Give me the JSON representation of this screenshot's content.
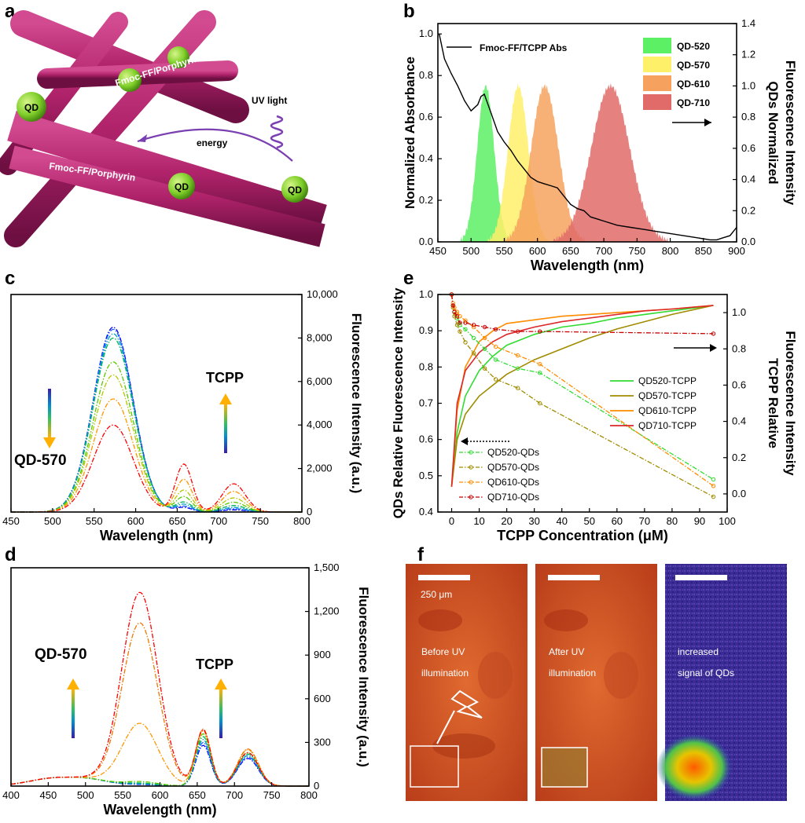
{
  "panels": {
    "a": {
      "label": "a",
      "fiber_labels": [
        "Fmoc-FF/Porphyrin",
        "Fmoc-FF/Porphyrin"
      ],
      "qd_labels": [
        "QD",
        "QD",
        "QD"
      ],
      "uv_label": "UV light",
      "energy_label": "energy",
      "colors": {
        "fiber": "#b0236b",
        "qd": "#7fcf2a",
        "uv": "#7a3fb0"
      }
    },
    "b": {
      "label": "b"
    },
    "c": {
      "label": "c",
      "qd_label": "QD-570",
      "tcpp_label": "TCPP"
    },
    "d": {
      "label": "d",
      "qd_label": "QD-570",
      "tcpp_label": "TCPP"
    },
    "e": {
      "label": "e"
    },
    "f": {
      "label": "f",
      "scale_label": "250 μm",
      "captions": [
        [
          "Before UV",
          "illumination"
        ],
        [
          "After UV",
          "illumination"
        ],
        [
          "increased",
          "signal of QDs"
        ]
      ]
    }
  },
  "chart_data": [
    {
      "id": "b",
      "type": "area",
      "xlabel": "Wavelength (nm)",
      "ylabel_left": "Normalized Absorbance",
      "ylabel_right": [
        "QDs Normalized",
        "Fluorescence Intensity"
      ],
      "xlim": [
        450,
        900
      ],
      "ylim_left": [
        0,
        1.05
      ],
      "ylim_right": [
        0,
        1.4
      ],
      "x_ticks": [
        450,
        500,
        550,
        600,
        650,
        700,
        750,
        800,
        850,
        900
      ],
      "y_ticks_left": [
        0.0,
        0.2,
        0.4,
        0.6,
        0.8,
        1.0
      ],
      "y_ticks_right": [
        0.0,
        0.2,
        0.4,
        0.6,
        0.8,
        1.0,
        1.2,
        1.4
      ],
      "line_series": {
        "name": "Fmoc-FF/TCPP Abs",
        "color": "#000000",
        "x": [
          452,
          460,
          470,
          480,
          490,
          500,
          510,
          515,
          520,
          530,
          540,
          550,
          560,
          570,
          580,
          590,
          600,
          610,
          620,
          630,
          640,
          650,
          660,
          670,
          680,
          700,
          720,
          740,
          760,
          780,
          800,
          820,
          840,
          860,
          870,
          880,
          890,
          900
        ],
        "y": [
          1.0,
          0.88,
          0.81,
          0.75,
          0.68,
          0.63,
          0.66,
          0.7,
          0.71,
          0.62,
          0.53,
          0.48,
          0.44,
          0.39,
          0.35,
          0.31,
          0.29,
          0.28,
          0.27,
          0.26,
          0.22,
          0.18,
          0.16,
          0.15,
          0.12,
          0.1,
          0.08,
          0.07,
          0.06,
          0.05,
          0.04,
          0.03,
          0.02,
          0.01,
          0.01,
          0.02,
          0.03,
          0.07
        ]
      },
      "area_series": [
        {
          "name": "QD-520",
          "center": 522,
          "fwhm": 30,
          "peak": 1.0,
          "color": "#5cf064"
        },
        {
          "name": "QD-570",
          "center": 571,
          "fwhm": 36,
          "peak": 1.0,
          "color": "#fff06a"
        },
        {
          "name": "QD-610",
          "center": 611,
          "fwhm": 48,
          "peak": 1.0,
          "color": "#f6a25e"
        },
        {
          "name": "QD-710",
          "center": 710,
          "fwhm": 68,
          "peak": 1.0,
          "color": "#e06b68"
        }
      ],
      "legend": "top-right"
    },
    {
      "id": "c",
      "type": "line",
      "xlabel": "Wavelength (nm)",
      "ylabel_right": "Fluorescence Intensity (a.u.)",
      "xlim": [
        450,
        800
      ],
      "ylim": [
        0,
        10000
      ],
      "x_ticks": [
        450,
        500,
        550,
        600,
        650,
        700,
        750,
        800
      ],
      "y_ticks": [
        0,
        2000,
        4000,
        6000,
        8000,
        10000
      ],
      "y_tick_labels": [
        "0",
        "2,000",
        "4,000",
        "6,000",
        "8,000",
        "10,000"
      ],
      "series": [
        {
          "qd_peak": 8500,
          "p658": 200,
          "p720": 100,
          "color": "#0000ff"
        },
        {
          "qd_peak": 8400,
          "p658": 260,
          "p720": 150,
          "color": "#1e64ff"
        },
        {
          "qd_peak": 8200,
          "p658": 350,
          "p720": 210,
          "color": "#00a0c8"
        },
        {
          "qd_peak": 8000,
          "p658": 450,
          "p720": 300,
          "color": "#00b45a"
        },
        {
          "qd_peak": 6900,
          "p658": 700,
          "p720": 450,
          "color": "#5ac800"
        },
        {
          "qd_peak": 6300,
          "p658": 1000,
          "p720": 650,
          "color": "#b4c800"
        },
        {
          "qd_peak": 5200,
          "p658": 1500,
          "p720": 950,
          "color": "#ff9600"
        },
        {
          "qd_peak": 4000,
          "p658": 2200,
          "p720": 1300,
          "color": "#ff0000"
        }
      ]
    },
    {
      "id": "d",
      "type": "line",
      "xlabel": "Wavelength (nm)",
      "ylabel_right": "Fluorescence Intensity (a.u.)",
      "xlim": [
        400,
        800
      ],
      "ylim": [
        0,
        1500
      ],
      "x_ticks": [
        400,
        450,
        500,
        550,
        600,
        650,
        700,
        750,
        800
      ],
      "y_ticks": [
        0,
        300,
        600,
        900,
        1200,
        1500
      ],
      "y_tick_labels": [
        "0",
        "300",
        "600",
        "900",
        "1,200",
        "1,500"
      ],
      "series": [
        {
          "qd_peak": 10,
          "p658": 280,
          "p720": 190,
          "color": "#0000ff"
        },
        {
          "qd_peak": 12,
          "p658": 300,
          "p720": 200,
          "color": "#1e64ff"
        },
        {
          "qd_peak": 15,
          "p658": 320,
          "p720": 210,
          "color": "#00a0c8"
        },
        {
          "qd_peak": 20,
          "p658": 340,
          "p720": 220,
          "color": "#00b45a"
        },
        {
          "qd_peak": 30,
          "p658": 360,
          "p720": 230,
          "color": "#5ac800"
        },
        {
          "qd_peak": 430,
          "p658": 380,
          "p720": 250,
          "color": "#ff9600"
        },
        {
          "qd_peak": 1120,
          "p658": 390,
          "p720": 255,
          "color": "#f07800"
        },
        {
          "qd_peak": 1330,
          "p658": 385,
          "p720": 230,
          "color": "#ff0000"
        }
      ]
    },
    {
      "id": "e",
      "type": "scatter",
      "xlabel": "TCPP Concentration (μM)",
      "ylabel_left": "QDs Relative Fluorescence Intensity",
      "ylabel_right": [
        "TCPP Relative",
        "Fluorescence Intensity"
      ],
      "xlim": [
        -5,
        100
      ],
      "ylim_left": [
        0.4,
        1.0
      ],
      "ylim_right": [
        -0.1,
        1.1
      ],
      "x_ticks": [
        0,
        10,
        20,
        30,
        40,
        50,
        60,
        70,
        80,
        90,
        100
      ],
      "y_ticks_left": [
        0.4,
        0.5,
        0.6,
        0.7,
        0.8,
        0.9,
        1.0
      ],
      "y_ticks_right": [
        0.0,
        0.2,
        0.4,
        0.6,
        0.8,
        1.0
      ],
      "tcpp_series": [
        {
          "name": "QD520-TCPP",
          "color": "#32dc32",
          "x": [
            0,
            2,
            5,
            10,
            15,
            20,
            30,
            40,
            50,
            60,
            70,
            80,
            95
          ],
          "y": [
            0.47,
            0.62,
            0.72,
            0.79,
            0.83,
            0.86,
            0.89,
            0.91,
            0.92,
            0.935,
            0.945,
            0.955,
            0.97
          ]
        },
        {
          "name": "QD570-TCPP",
          "color": "#a08c00",
          "x": [
            0,
            2,
            5,
            10,
            15,
            20,
            30,
            40,
            50,
            60,
            70,
            80,
            95
          ],
          "y": [
            0.47,
            0.6,
            0.67,
            0.72,
            0.75,
            0.78,
            0.82,
            0.85,
            0.88,
            0.905,
            0.925,
            0.945,
            0.97
          ]
        },
        {
          "name": "QD610-TCPP",
          "color": "#ff8c00",
          "x": [
            0,
            2,
            5,
            10,
            15,
            20,
            30,
            40,
            50,
            60,
            70,
            80,
            95
          ],
          "y": [
            0.47,
            0.68,
            0.8,
            0.87,
            0.9,
            0.92,
            0.93,
            0.94,
            0.945,
            0.95,
            0.955,
            0.96,
            0.97
          ]
        },
        {
          "name": "QD710-TCPP",
          "color": "#dc2828",
          "x": [
            0,
            2,
            5,
            10,
            15,
            20,
            30,
            40,
            50,
            60,
            70,
            80,
            95
          ],
          "y": [
            0.47,
            0.7,
            0.79,
            0.84,
            0.87,
            0.89,
            0.91,
            0.925,
            0.935,
            0.945,
            0.955,
            0.96,
            0.97
          ]
        }
      ],
      "qd_series": [
        {
          "name": "QD520-QDs",
          "color": "#32dc32",
          "x": [
            0,
            0.5,
            1,
            2,
            3,
            5,
            8,
            12,
            16,
            24,
            32,
            95
          ],
          "y": [
            1.0,
            0.95,
            0.92,
            0.89,
            0.86,
            0.84,
            0.8,
            0.75,
            0.7,
            0.66,
            0.64,
            0.15
          ]
        },
        {
          "name": "QD570-QDs",
          "color": "#a08c00",
          "x": [
            0,
            0.5,
            1,
            2,
            3,
            5,
            8,
            12,
            16,
            24,
            32,
            95
          ],
          "y": [
            1.0,
            0.94,
            0.9,
            0.86,
            0.83,
            0.78,
            0.73,
            0.66,
            0.61,
            0.57,
            0.5,
            0.07
          ]
        },
        {
          "name": "QD610-QDs",
          "color": "#ff8c00",
          "x": [
            0,
            0.5,
            1,
            2,
            3,
            5,
            8,
            12,
            16,
            24,
            32,
            95
          ],
          "y": [
            1.0,
            0.96,
            0.94,
            0.92,
            0.9,
            0.88,
            0.85,
            0.8,
            0.76,
            0.72,
            0.68,
            0.12
          ]
        },
        {
          "name": "QD710-QDs",
          "color": "#c80000",
          "x": [
            0,
            0.5,
            1,
            2,
            3,
            5,
            8,
            12,
            16,
            24,
            32,
            95
          ],
          "y": [
            1.0,
            0.95,
            0.92,
            0.9,
            0.87,
            0.87,
            0.86,
            0.85,
            0.84,
            0.83,
            0.83,
            0.82
          ]
        }
      ],
      "legend": "right"
    }
  ]
}
